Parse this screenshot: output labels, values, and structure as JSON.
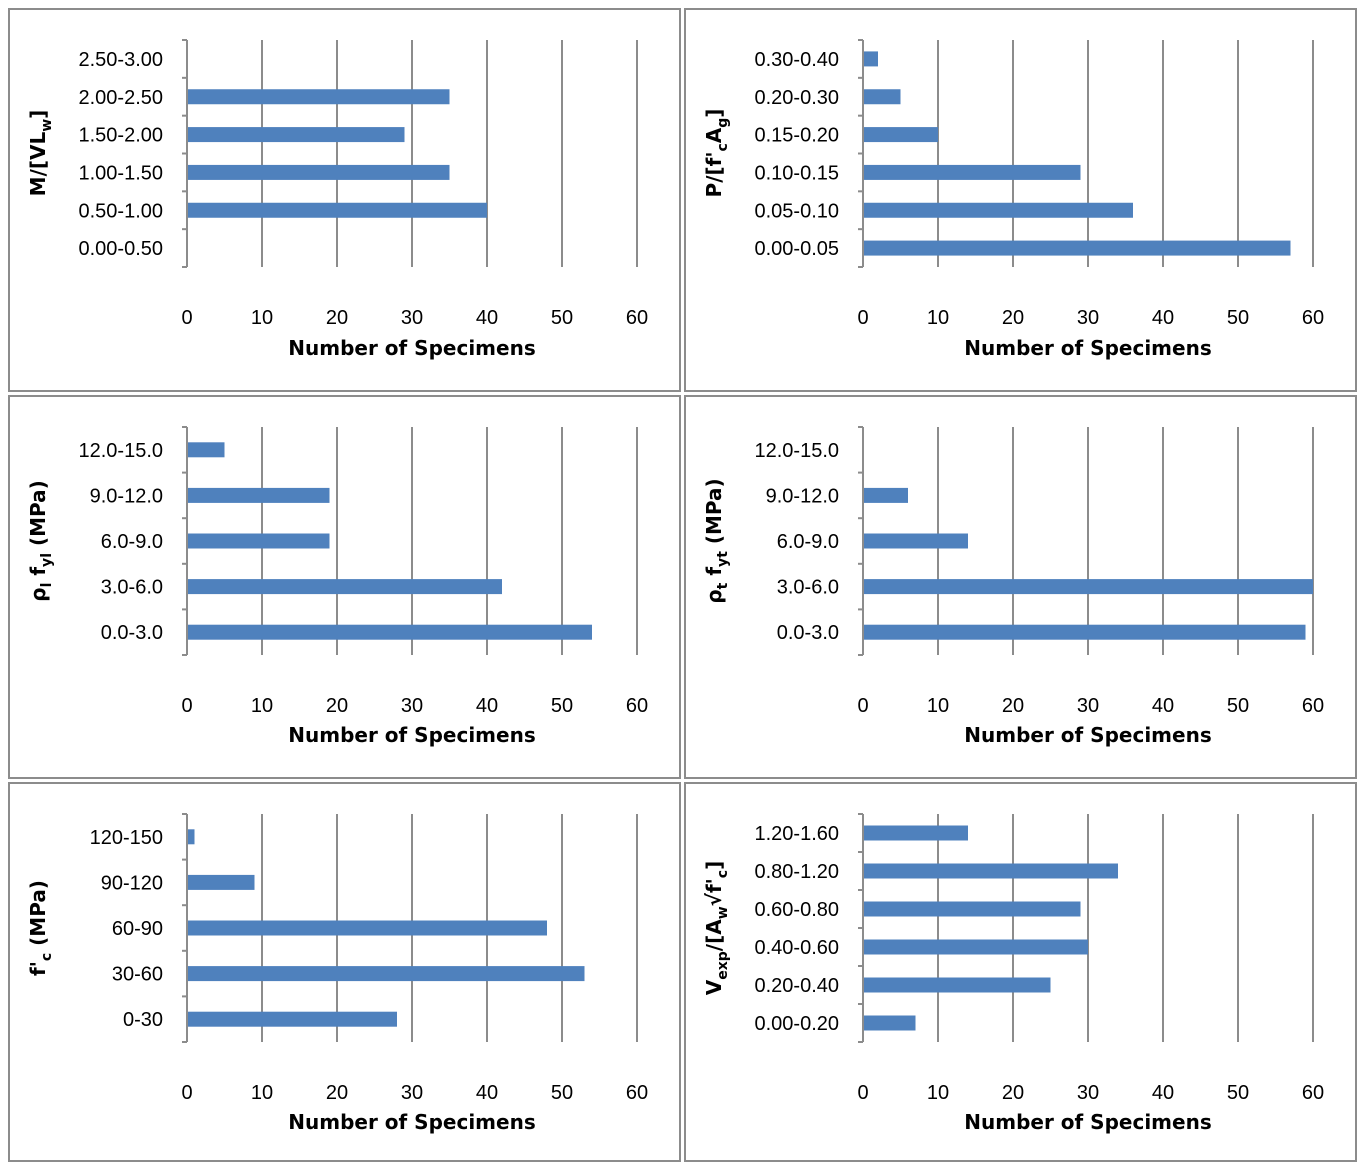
{
  "colors": {
    "bar": "#4f81bd",
    "grid": "#8c8c8c",
    "frame": "#8c8c8c"
  },
  "chart_data": [
    {
      "type": "bar",
      "orientation": "horizontal",
      "categories": [
        "0.00-0.50",
        "0.50-1.00",
        "1.00-1.50",
        "1.50-2.00",
        "2.00-2.50",
        "2.50-3.00"
      ],
      "values": [
        0,
        40,
        35,
        29,
        35,
        0
      ],
      "xlabel": "Number of Specimens",
      "ylabel_parts": [
        {
          "t": "M/[VL"
        },
        {
          "t": "w",
          "sub": true
        },
        {
          "t": "]"
        }
      ],
      "xlim": [
        0,
        60
      ],
      "xticks": [
        0,
        10,
        20,
        30,
        40,
        50,
        60
      ],
      "grid": true
    },
    {
      "type": "bar",
      "orientation": "horizontal",
      "categories": [
        "0.00-0.05",
        "0.05-0.10",
        "0.10-0.15",
        "0.15-0.20",
        "0.20-0.30",
        "0.30-0.40"
      ],
      "values": [
        57,
        36,
        29,
        10,
        5,
        2
      ],
      "xlabel": "Number of Specimens",
      "ylabel_parts": [
        {
          "t": "P/[f'"
        },
        {
          "t": "c",
          "sub": true
        },
        {
          "t": "A"
        },
        {
          "t": "g",
          "sub": true
        },
        {
          "t": "]"
        }
      ],
      "xlim": [
        0,
        60
      ],
      "xticks": [
        0,
        10,
        20,
        30,
        40,
        50,
        60
      ],
      "grid": true
    },
    {
      "type": "bar",
      "orientation": "horizontal",
      "categories": [
        "0.0-3.0",
        "3.0-6.0",
        "6.0-9.0",
        "9.0-12.0",
        "12.0-15.0"
      ],
      "values": [
        54,
        42,
        19,
        19,
        5
      ],
      "xlabel": "Number of Specimens",
      "ylabel_parts": [
        {
          "t": "ρ"
        },
        {
          "t": "l",
          "sub": true
        },
        {
          "t": " f"
        },
        {
          "t": "yl",
          "sub": true
        },
        {
          "t": " (MPa)"
        }
      ],
      "xlim": [
        0,
        60
      ],
      "xticks": [
        0,
        10,
        20,
        30,
        40,
        50,
        60
      ],
      "grid": true
    },
    {
      "type": "bar",
      "orientation": "horizontal",
      "categories": [
        "0.0-3.0",
        "3.0-6.0",
        "6.0-9.0",
        "9.0-12.0",
        "12.0-15.0"
      ],
      "values": [
        59,
        60,
        14,
        6,
        0
      ],
      "xlabel": "Number of Specimens",
      "ylabel_parts": [
        {
          "t": "ρ"
        },
        {
          "t": "t",
          "sub": true
        },
        {
          "t": " f"
        },
        {
          "t": "yt",
          "sub": true
        },
        {
          "t": " (MPa)"
        }
      ],
      "xlim": [
        0,
        60
      ],
      "xticks": [
        0,
        10,
        20,
        30,
        40,
        50,
        60
      ],
      "grid": true
    },
    {
      "type": "bar",
      "orientation": "horizontal",
      "categories": [
        "0-30",
        "30-60",
        "60-90",
        "90-120",
        "120-150"
      ],
      "values": [
        28,
        53,
        48,
        9,
        1
      ],
      "xlabel": "Number of Specimens",
      "ylabel_parts": [
        {
          "t": "f'"
        },
        {
          "t": "c",
          "sub": true
        },
        {
          "t": " (MPa)"
        }
      ],
      "xlim": [
        0,
        60
      ],
      "xticks": [
        0,
        10,
        20,
        30,
        40,
        50,
        60
      ],
      "grid": true
    },
    {
      "type": "bar",
      "orientation": "horizontal",
      "categories": [
        "0.00-0.20",
        "0.20-0.40",
        "0.40-0.60",
        "0.60-0.80",
        "0.80-1.20",
        "1.20-1.60"
      ],
      "values": [
        7,
        25,
        30,
        29,
        34,
        14
      ],
      "xlabel": "Number of Specimens",
      "ylabel_parts": [
        {
          "t": "V"
        },
        {
          "t": "exp",
          "sub": true
        },
        {
          "t": "/[A"
        },
        {
          "t": "w",
          "sub": true
        },
        {
          "t": "√f'"
        },
        {
          "t": "c",
          "sub": true
        },
        {
          "t": "]"
        }
      ],
      "xlim": [
        0,
        60
      ],
      "xticks": [
        0,
        10,
        20,
        30,
        40,
        50,
        60
      ],
      "grid": true
    }
  ]
}
